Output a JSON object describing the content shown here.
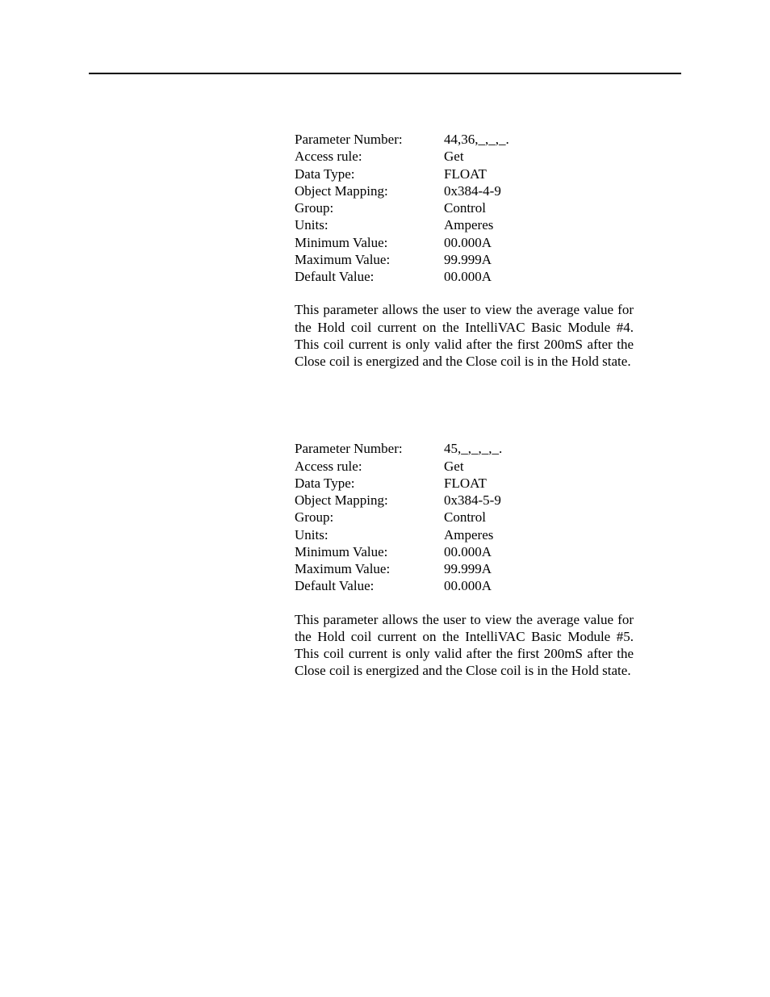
{
  "sections": [
    {
      "params": [
        {
          "label": "Parameter Number:",
          "value": "44,36,_,_,_."
        },
        {
          "label": "Access rule:",
          "value": "Get"
        },
        {
          "label": "Data Type:",
          "value": "FLOAT"
        },
        {
          "label": "Object Mapping:",
          "value": "0x384-4-9"
        },
        {
          "label": "Group:",
          "value": "Control"
        },
        {
          "label": "Units:",
          "value": "Amperes"
        },
        {
          "label": "Minimum Value:",
          "value": "00.000A"
        },
        {
          "label": "Maximum Value:",
          "value": "99.999A"
        },
        {
          "label": "Default Value:",
          "value": "00.000A"
        }
      ],
      "description": "This parameter allows the user to view the average value for the Hold coil current on the IntelliVAC Basic Module #4.  This coil current is only valid after the first 200mS after the Close coil is energized and the Close coil is in the Hold state."
    },
    {
      "params": [
        {
          "label": "Parameter Number:",
          "value": "45,_,_,_,_."
        },
        {
          "label": "Access rule:",
          "value": "Get"
        },
        {
          "label": "Data Type:",
          "value": "FLOAT"
        },
        {
          "label": "Object Mapping:",
          "value": "0x384-5-9"
        },
        {
          "label": "Group:",
          "value": "Control"
        },
        {
          "label": "Units:",
          "value": "Amperes"
        },
        {
          "label": "Minimum Value:",
          "value": "00.000A"
        },
        {
          "label": "Maximum Value:",
          "value": "99.999A"
        },
        {
          "label": "Default Value:",
          "value": "00.000A"
        }
      ],
      "description": "This parameter allows the user to view the average value for the Hold coil current on the IntelliVAC Basic Module #5.  This coil current is only valid after the first 200mS after the Close coil is energized and the Close coil is in the Hold state."
    }
  ]
}
